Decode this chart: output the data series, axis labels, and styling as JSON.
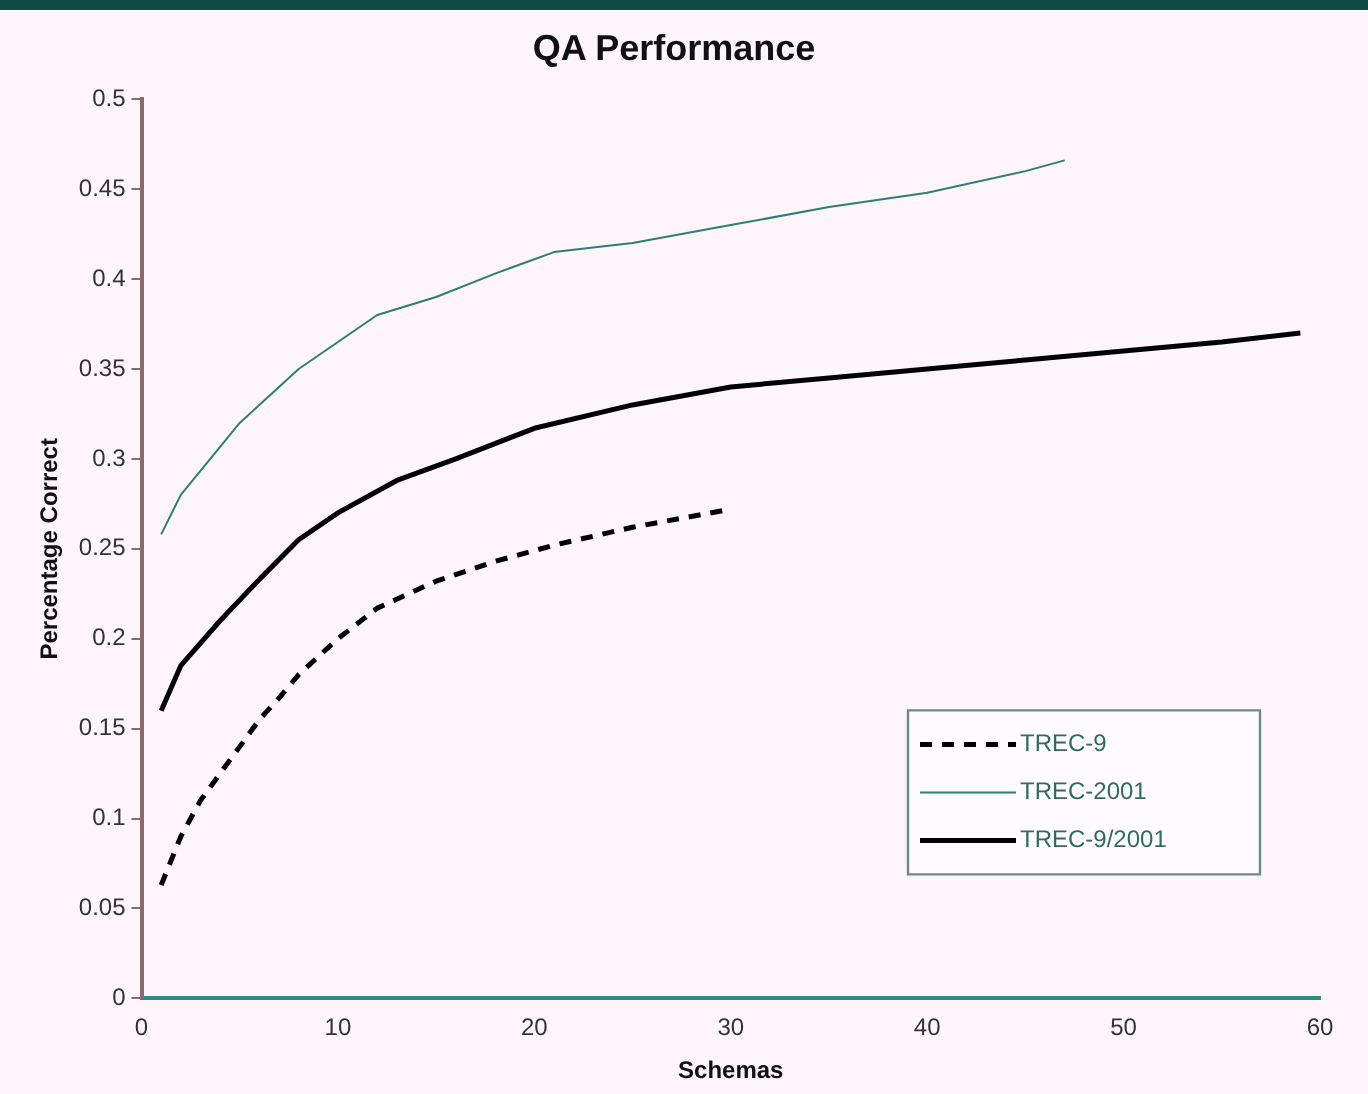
{
  "chart_data": {
    "type": "line",
    "title": "QA Performance",
    "xlabel": "Schemas",
    "ylabel": "Percentage Correct",
    "xlim": [
      0,
      60
    ],
    "xticks": [
      0,
      10,
      20,
      30,
      40,
      50,
      60
    ],
    "ylim": [
      0,
      0.5
    ],
    "yticks": [
      0,
      0.05,
      0.1,
      0.15,
      0.2,
      0.25,
      0.3,
      0.35,
      0.4,
      0.45,
      0.5
    ],
    "grid": false,
    "legend": "bottom right",
    "marker": "none",
    "series": [
      {
        "name": "TREC-9",
        "color": "#000000",
        "line_style": "dashed",
        "x": [
          1,
          2,
          3,
          4,
          5,
          6,
          7,
          8,
          10,
          12,
          15,
          18,
          21,
          25,
          28,
          30
        ],
        "values": [
          0.063,
          0.09,
          0.11,
          0.125,
          0.14,
          0.155,
          0.167,
          0.18,
          0.2,
          0.217,
          0.232,
          0.243,
          0.252,
          0.262,
          0.268,
          0.272
        ]
      },
      {
        "name": "TREC-2001",
        "color": "#2e7f70",
        "line_style": "solid",
        "x": [
          1,
          2,
          5,
          8,
          10,
          12,
          15,
          18,
          21,
          25,
          30,
          35,
          40,
          45,
          47
        ],
        "values": [
          0.258,
          0.28,
          0.32,
          0.35,
          0.365,
          0.38,
          0.39,
          0.403,
          0.415,
          0.42,
          0.43,
          0.44,
          0.448,
          0.46,
          0.466
        ]
      },
      {
        "name": "TREC-9/2001",
        "color": "#000000",
        "line_style": "solid",
        "x": [
          1,
          2,
          4,
          6,
          8,
          10,
          13,
          16,
          20,
          25,
          30,
          35,
          40,
          45,
          50,
          55,
          59
        ],
        "values": [
          0.16,
          0.185,
          0.21,
          0.233,
          0.255,
          0.27,
          0.288,
          0.3,
          0.317,
          0.33,
          0.34,
          0.345,
          0.35,
          0.355,
          0.36,
          0.365,
          0.37
        ]
      }
    ]
  }
}
